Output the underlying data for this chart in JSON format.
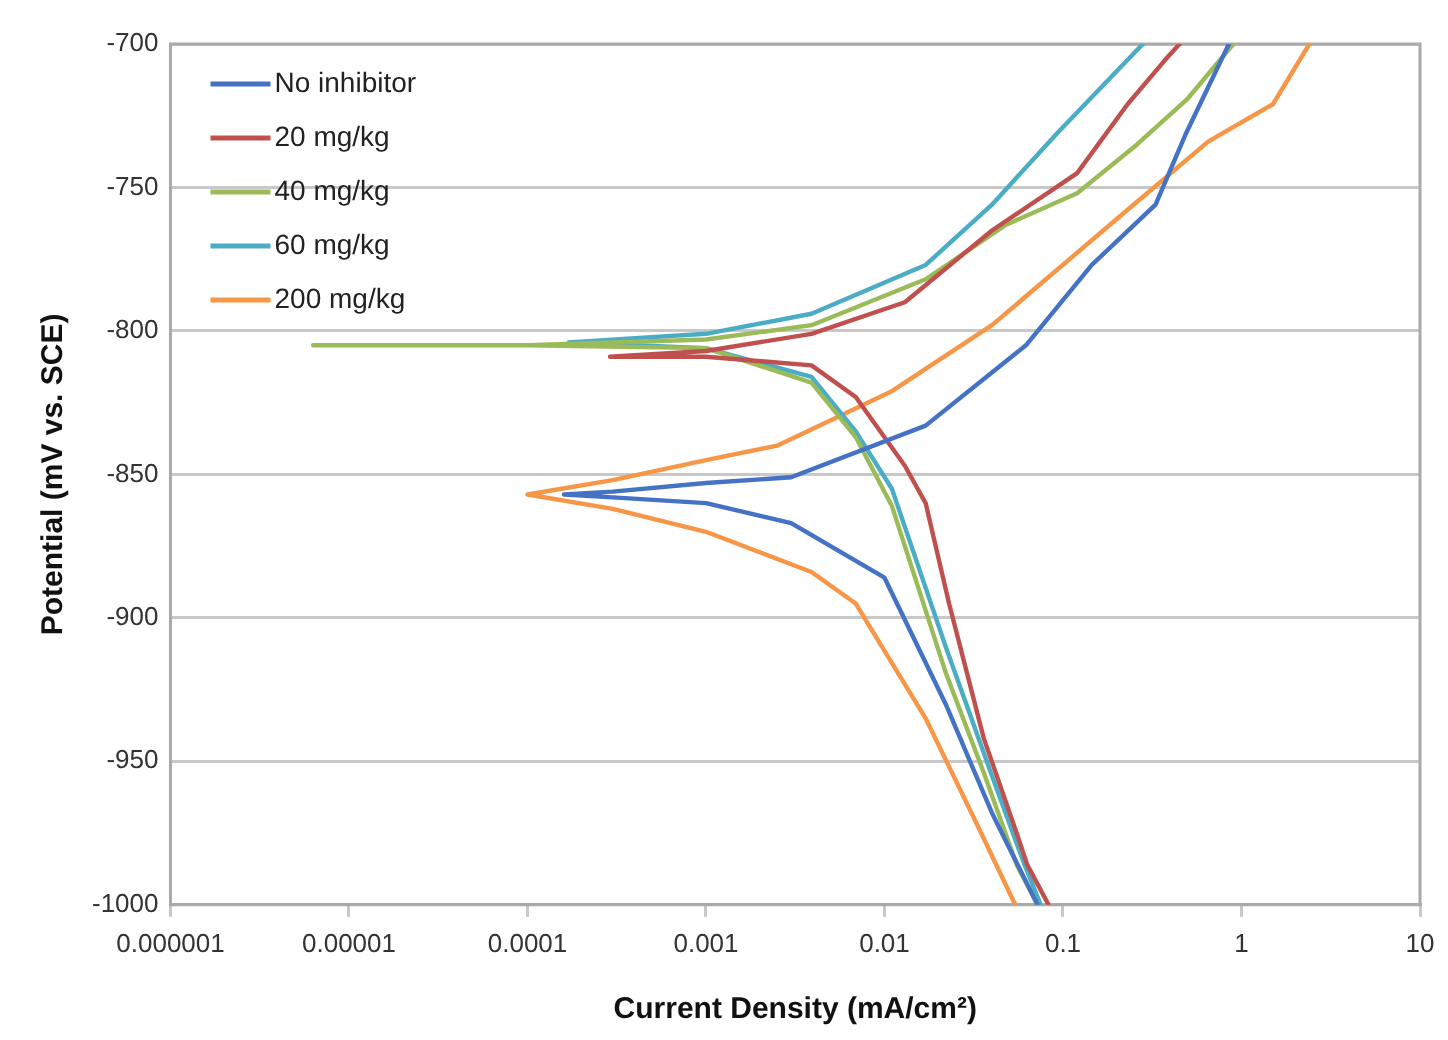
{
  "chart_data": {
    "type": "line",
    "xlabel": "Current Density (mA/cm²)",
    "ylabel": "Potential (mV vs. SCE)",
    "log": "x",
    "grid": "y",
    "legend": "top left",
    "marker": "none",
    "line_style": "solid",
    "xlim": [
      1e-06,
      10
    ],
    "ylim": [
      -1000,
      -700
    ],
    "xticks": [
      {
        "value": 1e-06,
        "label": "0.000001"
      },
      {
        "value": 1e-05,
        "label": "0.00001"
      },
      {
        "value": 0.0001,
        "label": "0.0001"
      },
      {
        "value": 0.001,
        "label": "0.001"
      },
      {
        "value": 0.01,
        "label": "0.01"
      },
      {
        "value": 0.1,
        "label": "0.1"
      },
      {
        "value": 1,
        "label": "1"
      },
      {
        "value": 10,
        "label": "10"
      }
    ],
    "yticks": [
      -1000,
      -950,
      -900,
      -850,
      -800,
      -750,
      -700
    ],
    "series": [
      {
        "name": "No inhibitor",
        "color": "#4472c4",
        "x": [
          0.072,
          0.04,
          0.022,
          0.01,
          0.003,
          0.001,
          0.0003,
          0.00016,
          0.0003,
          0.001,
          0.003,
          0.017,
          0.062,
          0.145,
          0.33,
          0.49,
          0.85
        ],
        "values": [
          -1000,
          -968,
          -930,
          -886,
          -867,
          -860,
          -858,
          -857,
          -856,
          -853,
          -851,
          -833,
          -805,
          -777,
          -756,
          -731,
          -700
        ]
      },
      {
        "name": "20 mg/kg",
        "color": "#c0504d",
        "x": [
          0.083,
          0.063,
          0.055,
          0.036,
          0.023,
          0.017,
          0.013,
          0.0069,
          0.0039,
          0.001,
          0.00029,
          0.001,
          0.0039,
          0.013,
          0.04,
          0.12,
          0.23,
          0.38,
          0.45
        ],
        "values": [
          -1000,
          -986,
          -975,
          -942,
          -895,
          -860,
          -847,
          -823,
          -812,
          -809,
          -809,
          -807,
          -801,
          -790,
          -765,
          -745,
          -721,
          -705,
          -700
        ]
      },
      {
        "name": "40 mg/kg",
        "color": "#9bbb59",
        "x": [
          0.072,
          0.055,
          0.036,
          0.022,
          0.011,
          0.0069,
          0.0039,
          0.001,
          0.0001,
          6.3e-06,
          0.0001,
          0.001,
          0.0039,
          0.017,
          0.048,
          0.12,
          0.26,
          0.5,
          0.9
        ],
        "values": [
          -1000,
          -986,
          -954,
          -919,
          -861,
          -837,
          -818,
          -806,
          -805,
          -805,
          -805,
          -803,
          -798,
          -782,
          -763,
          -752,
          -735,
          -719,
          -700
        ]
      },
      {
        "name": "60 mg/kg",
        "color": "#4bacc6",
        "x": [
          0.075,
          0.06,
          0.04,
          0.022,
          0.011,
          0.0069,
          0.0039,
          0.001,
          0.00017,
          0.001,
          0.0039,
          0.017,
          0.04,
          0.093,
          0.28
        ],
        "values": [
          -1000,
          -985,
          -955,
          -910,
          -855,
          -835,
          -816,
          -806,
          -804,
          -801,
          -794,
          -777,
          -756,
          -731,
          -700
        ]
      },
      {
        "name": "200 mg/kg",
        "color": "#f79646",
        "x": [
          0.054,
          0.033,
          0.017,
          0.0069,
          0.0039,
          0.001,
          0.0003,
          0.0001,
          0.0003,
          0.001,
          0.0025,
          0.011,
          0.04,
          0.2,
          0.65,
          1.5,
          2.4
        ],
        "values": [
          -1000,
          -972,
          -935,
          -895,
          -884,
          -870,
          -862,
          -857,
          -852,
          -845,
          -840,
          -821,
          -798,
          -761,
          -734,
          -721,
          -700
        ]
      }
    ]
  }
}
